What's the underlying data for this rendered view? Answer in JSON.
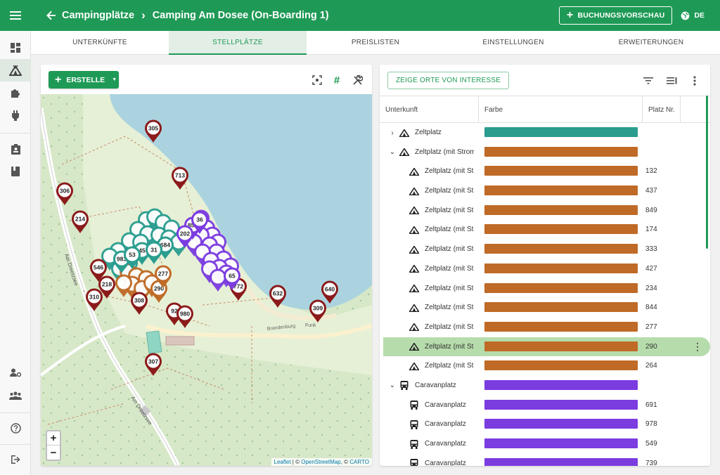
{
  "header": {
    "breadcrumb_parent": "Campingplätze",
    "breadcrumb_current": "Camping Am Dosee (On-Boarding 1)",
    "preview_button": "BUCHUNGSVORSCHAU",
    "language": "DE"
  },
  "tabs": [
    {
      "label": "UNTERKÜNFTE"
    },
    {
      "label": "STELLPLÄTZE"
    },
    {
      "label": "PREISLISTEN"
    },
    {
      "label": "EINSTELLUNGEN"
    },
    {
      "label": "ERWEITERUNGEN"
    }
  ],
  "map": {
    "create_button": "ERSTELLE",
    "attribution_leaflet": "Leaflet",
    "attribution_sep1": "| ©",
    "attribution_osm": "OpenStreetMap",
    "attribution_sep2": ", ©",
    "attribution_carto": "CARTO",
    "zoom_in": "+",
    "zoom_out": "−",
    "street_labels": [
      "Am Dreetzsee",
      "Am Dreetzsee",
      "Brandenburg",
      "Funk"
    ],
    "pins": [
      {
        "label": "305",
        "color": "#8b1a1a"
      },
      {
        "label": "713",
        "color": "#8b1a1a"
      },
      {
        "label": "306",
        "color": "#8b1a1a"
      },
      {
        "label": "214",
        "color": "#8b1a1a"
      },
      {
        "label": "546",
        "color": "#8b1a1a"
      },
      {
        "label": "218",
        "color": "#8b1a1a"
      },
      {
        "label": "310",
        "color": "#8b1a1a"
      },
      {
        "label": "308",
        "color": "#8b1a1a"
      },
      {
        "label": "290",
        "color": "#bf6a26"
      },
      {
        "label": "772",
        "color": "#8b1a1a"
      },
      {
        "label": "632",
        "color": "#8b1a1a"
      },
      {
        "label": "640",
        "color": "#8b1a1a"
      },
      {
        "label": "309",
        "color": "#8b1a1a"
      },
      {
        "label": "92",
        "color": "#8b1a1a"
      },
      {
        "label": "980",
        "color": "#8b1a1a"
      },
      {
        "label": "307",
        "color": "#8b1a1a"
      },
      {
        "label": "684",
        "color": "#2a9d8f"
      },
      {
        "label": "45",
        "color": "#2a9d8f"
      },
      {
        "label": "31",
        "color": "#2a9d8f"
      },
      {
        "label": "983",
        "color": "#2a9d8f"
      },
      {
        "label": "53",
        "color": "#2a9d8f"
      },
      {
        "label": "850",
        "color": "#7b3ce0"
      },
      {
        "label": "36",
        "color": "#7b3ce0"
      },
      {
        "label": "202",
        "color": "#7b3ce0"
      },
      {
        "label": "65",
        "color": "#7b3ce0"
      },
      {
        "label": "277",
        "color": "#bf6a26"
      }
    ]
  },
  "table": {
    "poi_button": "ZEIGE ORTE VON INTERESSE",
    "columns": [
      "Unterkunft",
      "Farbe",
      "Platz Nr."
    ],
    "rows": [
      {
        "label": "Zeltplatz",
        "color": "#2a9d8f",
        "num": "",
        "level": 0,
        "expand": "›",
        "icon": "tent"
      },
      {
        "label": "Zeltplatz (mit Strom)",
        "color": "#bf6a26",
        "num": "",
        "level": 0,
        "expand": "⌄",
        "icon": "tent"
      },
      {
        "label": "Zeltplatz (mit Strom)",
        "color": "#bf6a26",
        "num": "132",
        "level": 1,
        "icon": "tent"
      },
      {
        "label": "Zeltplatz (mit Strom)",
        "color": "#bf6a26",
        "num": "437",
        "level": 1,
        "icon": "tent"
      },
      {
        "label": "Zeltplatz (mit Strom)",
        "color": "#bf6a26",
        "num": "849",
        "level": 1,
        "icon": "tent"
      },
      {
        "label": "Zeltplatz (mit Strom)",
        "color": "#bf6a26",
        "num": "174",
        "level": 1,
        "icon": "tent"
      },
      {
        "label": "Zeltplatz (mit Strom)",
        "color": "#bf6a26",
        "num": "333",
        "level": 1,
        "icon": "tent"
      },
      {
        "label": "Zeltplatz (mit Strom)",
        "color": "#bf6a26",
        "num": "427",
        "level": 1,
        "icon": "tent"
      },
      {
        "label": "Zeltplatz (mit Strom)",
        "color": "#bf6a26",
        "num": "234",
        "level": 1,
        "icon": "tent"
      },
      {
        "label": "Zeltplatz (mit Strom)",
        "color": "#bf6a26",
        "num": "844",
        "level": 1,
        "icon": "tent"
      },
      {
        "label": "Zeltplatz (mit Strom)",
        "color": "#bf6a26",
        "num": "277",
        "level": 1,
        "icon": "tent"
      },
      {
        "label": "Zeltplatz (mit Strom)",
        "color": "#bf6a26",
        "num": "290",
        "level": 1,
        "icon": "tent",
        "selected": true
      },
      {
        "label": "Zeltplatz (mit Strom)",
        "color": "#bf6a26",
        "num": "264",
        "level": 1,
        "icon": "tent"
      },
      {
        "label": "Caravanplatz",
        "color": "#7b3ce0",
        "num": "",
        "level": 0,
        "expand": "⌄",
        "icon": "bus"
      },
      {
        "label": "Caravanplatz",
        "color": "#7b3ce0",
        "num": "691",
        "level": 1,
        "icon": "bus"
      },
      {
        "label": "Caravanplatz",
        "color": "#7b3ce0",
        "num": "978",
        "level": 1,
        "icon": "bus"
      },
      {
        "label": "Caravanplatz",
        "color": "#7b3ce0",
        "num": "549",
        "level": 1,
        "icon": "bus"
      },
      {
        "label": "Caravanplatz",
        "color": "#7b3ce0",
        "num": "739",
        "level": 1,
        "icon": "bus"
      }
    ],
    "row_menu": "⋮"
  },
  "colors": {
    "brand": "#1f9a56",
    "teal": "#2a9d8f",
    "orange": "#bf6a26",
    "purple": "#7b3ce0",
    "maroon": "#8b1a1a"
  }
}
